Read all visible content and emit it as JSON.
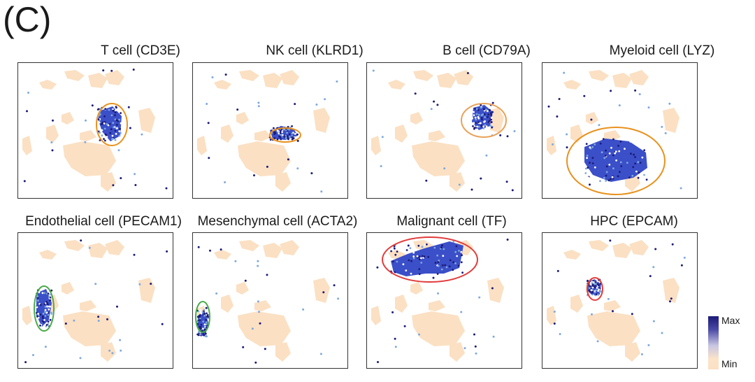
{
  "figure": {
    "panel_label": "(C)",
    "legend": {
      "max_label": "Max",
      "min_label": "Min",
      "colors": {
        "max": "#1c1a78",
        "min": "#fbe0c3"
      }
    }
  },
  "chart_data": [
    {
      "type": "scatter",
      "title": "T cell (CD3E)",
      "marker": "CD3E",
      "cell_type": "T cell",
      "highlight": {
        "cluster": "t_center",
        "color": "#e8921e"
      }
    },
    {
      "type": "scatter",
      "title": "NK cell (KLRD1)",
      "marker": "KLRD1",
      "cell_type": "NK cell",
      "highlight": {
        "cluster": "nk_band",
        "color": "#e8921e"
      }
    },
    {
      "type": "scatter",
      "title": "B cell (CD79A)",
      "marker": "CD79A",
      "cell_type": "B cell",
      "highlight": {
        "cluster": "b_right",
        "color": "#e8a25a"
      }
    },
    {
      "type": "scatter",
      "title": "Myeloid cell (LYZ)",
      "marker": "LYZ",
      "cell_type": "Myeloid cell",
      "highlight": {
        "cluster": "myeloid_big",
        "color": "#e8921e"
      }
    },
    {
      "type": "scatter",
      "title": "Endothelial cell (PECAM1)",
      "marker": "PECAM1",
      "cell_type": "Endothelial cell",
      "highlight": {
        "cluster": "endo_left",
        "color": "#4aaa48"
      }
    },
    {
      "type": "scatter",
      "title": "Mesenchymal cell (ACTA2)",
      "marker": "ACTA2",
      "cell_type": "Mesenchymal cell",
      "highlight": {
        "cluster": "mes_left",
        "color": "#4aaa48"
      }
    },
    {
      "type": "scatter",
      "title": "Malignant cell (TF)",
      "marker": "TF",
      "cell_type": "Malignant cell",
      "highlight": {
        "cluster": "malignant_top",
        "color": "#e23c3c"
      }
    },
    {
      "type": "scatter",
      "title": "HPC (EPCAM)",
      "marker": "EPCAM",
      "cell_type": "HPC",
      "highlight": {
        "cluster": "hpc_small",
        "color": "#e23c3c"
      }
    }
  ]
}
